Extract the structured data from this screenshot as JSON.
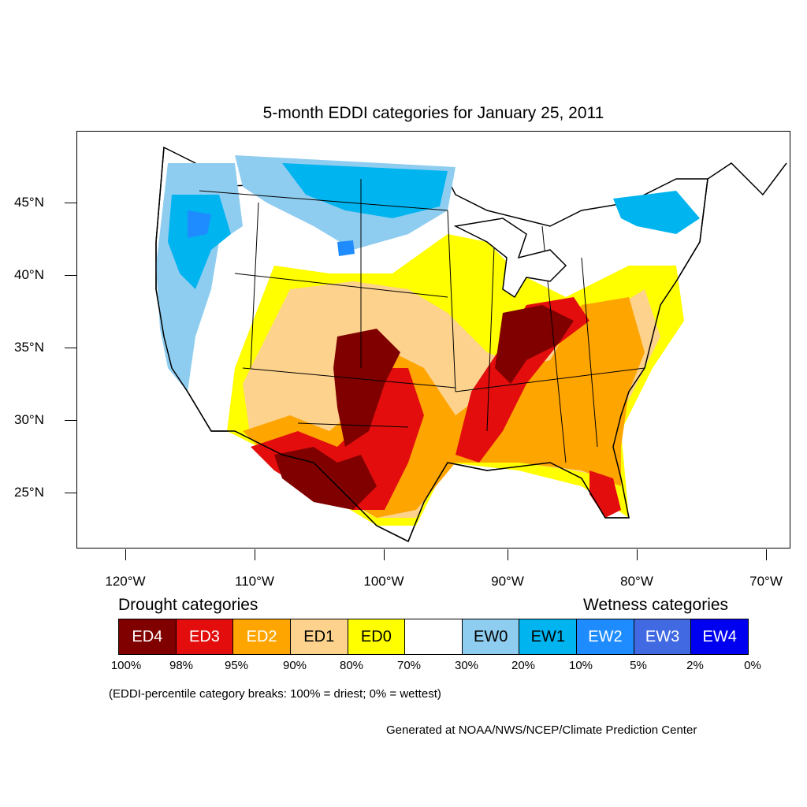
{
  "title": "5-month EDDI categories for January 25, 2011",
  "latitude_labels": [
    "45°N",
    "40°N",
    "35°N",
    "30°N",
    "25°N"
  ],
  "longitude_labels": [
    "120°W",
    "110°W",
    "100°W",
    "90°W",
    "80°W",
    "70°W"
  ],
  "legend": {
    "drought_heading": "Drought categories",
    "wetness_heading": "Wetness categories",
    "categories": [
      {
        "label": "ED4",
        "color": "#800000",
        "text_color": "#ffffff"
      },
      {
        "label": "ED3",
        "color": "#e30d0d",
        "text_color": "#ffffff"
      },
      {
        "label": "ED2",
        "color": "#ffa500",
        "text_color": "#ffffff"
      },
      {
        "label": "ED1",
        "color": "#fcd28c",
        "text_color": "#000000"
      },
      {
        "label": "ED0",
        "color": "#ffff00",
        "text_color": "#000000"
      },
      {
        "label": "",
        "color": "#ffffff",
        "text_color": "#000000"
      },
      {
        "label": "EW0",
        "color": "#8fcdf0",
        "text_color": "#000000"
      },
      {
        "label": "EW1",
        "color": "#00b4f0",
        "text_color": "#000000"
      },
      {
        "label": "EW2",
        "color": "#1e8cff",
        "text_color": "#ffffff"
      },
      {
        "label": "EW3",
        "color": "#4169e1",
        "text_color": "#ffffff"
      },
      {
        "label": "EW4",
        "color": "#0000f0",
        "text_color": "#ffffff"
      }
    ],
    "percentile_breaks": [
      "100%",
      "98%",
      "95%",
      "90%",
      "80%",
      "70%",
      "30%",
      "20%",
      "10%",
      "5%",
      "2%",
      "0%"
    ]
  },
  "breaks_note": "(EDDI-percentile category breaks: 100% = driest; 0% = wettest)",
  "credit": "Generated at NOAA/NWS/NCEP/Climate Prediction Center"
}
